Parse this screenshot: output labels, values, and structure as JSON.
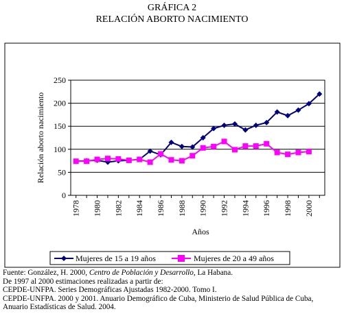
{
  "figure": {
    "heading": "GRÁFICA 2",
    "title": "RELACIÓN ABORTO NACIMIENTO"
  },
  "chart_data": {
    "type": "line",
    "ylabel": "Relación aborto nacimiento",
    "xlabel": "Años",
    "ylim": [
      0,
      250
    ],
    "yticks": [
      0,
      50,
      100,
      150,
      200,
      250
    ],
    "xticks": [
      "1978",
      "1980",
      "1982",
      "1984",
      "1986",
      "1988",
      "1990",
      "1992",
      "1994",
      "1996",
      "1998",
      "2000"
    ],
    "x": [
      1978,
      1979,
      1980,
      1981,
      1982,
      1983,
      1984,
      1985,
      1986,
      1987,
      1988,
      1989,
      1990,
      1991,
      1992,
      1993,
      1994,
      1995,
      1996,
      1997,
      1998,
      1999,
      2000,
      2001
    ],
    "grid": "horizontal",
    "legend_position": "bottom",
    "series": [
      {
        "name": "Mujeres de 15 a 19 años",
        "color": "#000080",
        "marker": "diamond",
        "values": [
          74,
          75,
          76,
          72,
          75,
          76,
          78,
          96,
          88,
          115,
          106,
          105,
          125,
          145,
          152,
          155,
          142,
          152,
          158,
          181,
          173,
          185,
          199,
          220
        ]
      },
      {
        "name": "Mujeres de 20 a 49 años",
        "color": "#ff00ff",
        "marker": "square",
        "values": [
          74,
          74,
          78,
          80,
          79,
          76,
          78,
          72,
          90,
          77,
          75,
          86,
          103,
          106,
          117,
          99,
          107,
          107,
          112,
          93,
          89,
          93,
          95,
          null
        ]
      }
    ]
  },
  "source": {
    "line1_prefix": "Fuente: González, H. 2000, ",
    "line1_italic": "Centro de Población y Desarrollo",
    "line1_suffix": ", La Habana.",
    "line2": "De 1997 al 2000 estimaciones realizadas a partir de:",
    "line3": "CEPDE-UNFPA. Series Demográficas Ajustadas 1982-2000. Tomo I.",
    "line4": "CEPDE-UNFPA. 2000 y 2001. Anuario Demográfico de Cuba, Ministerio de Salud Pública de Cuba,",
    "line5": "Anuario Estadísticas de Salud. 2004."
  }
}
